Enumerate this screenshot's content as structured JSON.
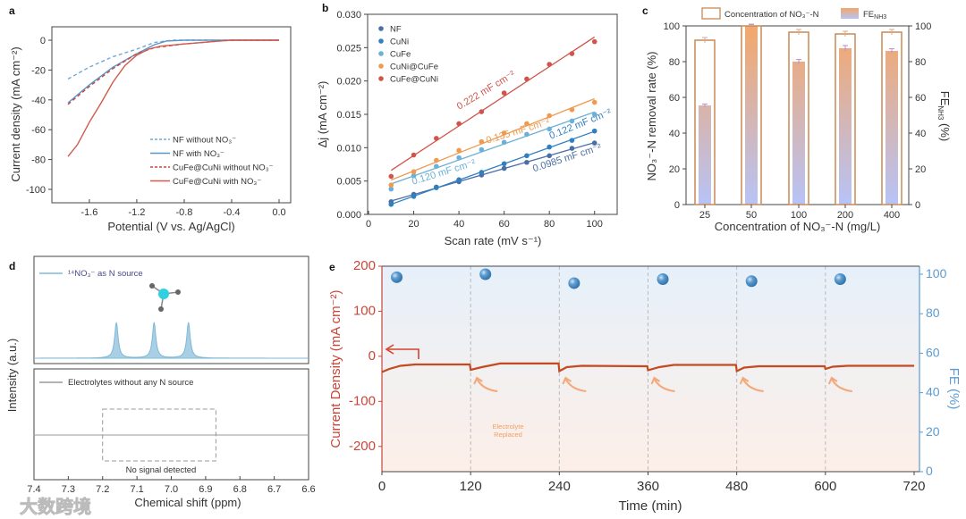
{
  "watermark": "大数跨境",
  "chart_data": [
    {
      "panel": "a",
      "type": "line",
      "xlabel": "Potential (V vs. Ag/AgCl)",
      "ylabel": "Current density (mA cm⁻²)",
      "xlim": [
        -1.916,
        0.098
      ],
      "ylim": [
        -109,
        9
      ],
      "xticks": [
        -1.6,
        -1.2,
        -0.8,
        -0.4,
        0.0
      ],
      "xtick_labels": [
        "-1.6",
        "-1.2",
        "-0.8",
        "-0.4",
        "0.0"
      ],
      "yticks": [
        0,
        -20,
        -40,
        -60,
        -80,
        -100
      ],
      "ytick_labels": [
        "0",
        "-20",
        "-40",
        "-60",
        "-80",
        "-100"
      ],
      "legend_position": "bottom-right",
      "series": [
        {
          "name": "NF without NO₃⁻",
          "color": "#6fa8d6",
          "dashed": true,
          "points": [
            [
              -1.78,
              -26
            ],
            [
              -1.6,
              -18
            ],
            [
              -1.4,
              -11
            ],
            [
              -1.2,
              -6
            ],
            [
              -1.05,
              -1.5
            ],
            [
              -0.9,
              0
            ],
            [
              0,
              0
            ]
          ]
        },
        {
          "name": "NF with NO₃⁻",
          "color": "#5b95c8",
          "dashed": false,
          "points": [
            [
              -1.78,
              -42
            ],
            [
              -1.6,
              -30
            ],
            [
              -1.4,
              -18
            ],
            [
              -1.2,
              -9
            ],
            [
              -1.05,
              -3
            ],
            [
              -0.95,
              -0.5
            ],
            [
              -0.8,
              0
            ],
            [
              0,
              0
            ]
          ]
        },
        {
          "name": "CuFe@CuNi without NO₃⁻",
          "color": "#c8463a",
          "dashed": true,
          "points": [
            [
              -1.78,
              -43
            ],
            [
              -1.6,
              -31
            ],
            [
              -1.4,
              -19
            ],
            [
              -1.2,
              -9
            ],
            [
              -1.05,
              -5
            ],
            [
              -0.8,
              -2.5
            ],
            [
              -0.5,
              -0.5
            ],
            [
              -0.4,
              0
            ],
            [
              0,
              0
            ]
          ]
        },
        {
          "name": "CuFe@CuNi with NO₃⁻",
          "color": "#d05a4c",
          "dashed": false,
          "points": [
            [
              -1.78,
              -78
            ],
            [
              -1.7,
              -70
            ],
            [
              -1.6,
              -55
            ],
            [
              -1.5,
              -42
            ],
            [
              -1.4,
              -28
            ],
            [
              -1.3,
              -17
            ],
            [
              -1.2,
              -10
            ],
            [
              -1.1,
              -6
            ],
            [
              -1.0,
              -4
            ],
            [
              -0.8,
              -2.5
            ],
            [
              -0.5,
              -0.5
            ],
            [
              -0.4,
              0
            ],
            [
              0,
              0
            ]
          ]
        }
      ]
    },
    {
      "panel": "b",
      "type": "scatter",
      "xlabel": "Scan rate (mV s⁻¹)",
      "ylabel": "Δj (mA cm⁻²)",
      "xlim": [
        0,
        110
      ],
      "ylim": [
        0,
        0.03
      ],
      "xticks": [
        0,
        20,
        40,
        60,
        80,
        100
      ],
      "xtick_labels": [
        "0",
        "20",
        "40",
        "60",
        "80",
        "100"
      ],
      "yticks": [
        0,
        0.005,
        0.01,
        0.015,
        0.02,
        0.025,
        0.03
      ],
      "ytick_labels": [
        "0.000",
        "0.005",
        "0.010",
        "0.015",
        "0.020",
        "0.025",
        "0.030"
      ],
      "legend_position": "top-left",
      "x": [
        10,
        20,
        30,
        40,
        50,
        60,
        70,
        80,
        90,
        100
      ],
      "series": [
        {
          "name": "NF",
          "color": "#4a6fa5",
          "fit_label": "0.0985 mF cm⁻²",
          "values": [
            0.0019,
            0.003,
            0.0041,
            0.0049,
            0.0059,
            0.0069,
            0.0078,
            0.0088,
            0.0099,
            0.0107
          ]
        },
        {
          "name": "CuNi",
          "color": "#2f7fc1",
          "fit_label": "0.122 mF cm⁻²",
          "values": [
            0.0015,
            0.0027,
            0.004,
            0.0052,
            0.0063,
            0.0076,
            0.0088,
            0.0101,
            0.0111,
            0.0125
          ]
        },
        {
          "name": "CuFe",
          "color": "#6ab0d8",
          "fit_label": "0.120 mF cm⁻²",
          "values": [
            0.0038,
            0.0058,
            0.0072,
            0.0085,
            0.0097,
            0.0108,
            0.012,
            0.0128,
            0.014,
            0.015
          ]
        },
        {
          "name": "CuNi@CuFe",
          "color": "#f09a50",
          "fit_label": "0.135 mF cm⁻²",
          "values": [
            0.0044,
            0.0064,
            0.0081,
            0.0096,
            0.0109,
            0.0122,
            0.0136,
            0.0148,
            0.0157,
            0.0168
          ]
        },
        {
          "name": "CuFe@CuNi",
          "color": "#d0544a",
          "fit_label": "0.222 mF cm⁻²",
          "values": [
            0.0057,
            0.0089,
            0.0114,
            0.0136,
            0.0154,
            0.0182,
            0.0203,
            0.0225,
            0.0241,
            0.0259
          ]
        }
      ]
    },
    {
      "panel": "c",
      "type": "bar",
      "xlabel": "Concentration of NO₃⁻-N (mg/L)",
      "ylabel": "NO₃⁻-N removal rate (%)",
      "ylabel_right": "FE",
      "ylabel_right_sub": "NH3",
      "ylabel_right_unit": "(%)",
      "ylim": [
        0,
        100
      ],
      "yticks": [
        0,
        20,
        40,
        60,
        80,
        100
      ],
      "ytick_labels": [
        "0",
        "20",
        "40",
        "60",
        "80",
        "100"
      ],
      "categories": [
        "25",
        "50",
        "100",
        "200",
        "400"
      ],
      "legend_position": "top",
      "series": [
        {
          "name": "Concentration of NO₃⁻-N",
          "style": "hollow",
          "color": "#c98a55",
          "values": [
            92,
            100,
            96.5,
            95.5,
            96.5
          ],
          "errors": [
            1.5,
            1,
            1.5,
            1.5,
            1.5
          ]
        },
        {
          "name": "FE",
          "name_sub": "NH3",
          "style": "gradient",
          "color_top": "#f4a76a",
          "color_bottom": "#b7c3f7",
          "values": [
            55.5,
            100,
            80,
            87.5,
            86
          ],
          "errors": [
            0.8,
            0.8,
            1.2,
            1.5,
            1.2
          ]
        }
      ]
    },
    {
      "panel": "d",
      "type": "line",
      "xlabel": "Chemical shift (ppm)",
      "ylabel": "Intensity (a.u.)",
      "xlim": [
        7.4,
        6.6
      ],
      "xticks": [
        7.4,
        7.3,
        7.2,
        7.1,
        7.0,
        6.9,
        6.8,
        6.7,
        6.6
      ],
      "xtick_labels": [
        "7.4",
        "7.3",
        "7.2",
        "7.1",
        "7.0",
        "6.9",
        "6.8",
        "6.7",
        "6.6"
      ],
      "series": [
        {
          "name": "¹⁴NO₃⁻ as N source",
          "color": "#7fb8d8",
          "peaks_ppm": [
            7.16,
            7.05,
            6.95
          ]
        },
        {
          "name": "Electrolytes without any N source",
          "color": "#9a9a9a",
          "peaks_ppm": []
        }
      ],
      "annotation": "No signal detected",
      "annotation_box_ppm": [
        7.2,
        6.87
      ]
    },
    {
      "panel": "e",
      "type": "line",
      "xlabel": "Time (min)",
      "ylabel": "Current Density (mA cm⁻²)",
      "ylabel_right": "FE (%)",
      "xlim": [
        0,
        720
      ],
      "ylim": [
        -256,
        200
      ],
      "ylim_right": [
        0,
        104
      ],
      "xticks": [
        0,
        120,
        240,
        360,
        480,
        600,
        720
      ],
      "xtick_labels": [
        "0",
        "120",
        "240",
        "360",
        "480",
        "600",
        "720"
      ],
      "yticks": [
        200,
        100,
        0,
        -100,
        -200
      ],
      "ytick_labels": [
        "200",
        "100",
        "0",
        "-100",
        "-200"
      ],
      "yticks_right": [
        0,
        20,
        40,
        60,
        80,
        100
      ],
      "ytick_labels_right": [
        "0",
        "20",
        "40",
        "60",
        "80",
        "100"
      ],
      "color_left": "#c8463a",
      "color_right": "#5b9bd0",
      "annotation_lines": [
        "Electrolyte",
        "Replaced"
      ],
      "replacement_times": [
        120,
        240,
        360,
        480,
        600
      ],
      "current": [
        [
          0,
          -35
        ],
        [
          10,
          -28
        ],
        [
          25,
          -21
        ],
        [
          45,
          -18
        ],
        [
          119,
          -18
        ],
        [
          120,
          -30
        ],
        [
          135,
          -24
        ],
        [
          160,
          -16
        ],
        [
          239,
          -16
        ],
        [
          240,
          -33
        ],
        [
          250,
          -24
        ],
        [
          270,
          -21
        ],
        [
          359,
          -22
        ],
        [
          360,
          -31
        ],
        [
          375,
          -24
        ],
        [
          395,
          -19
        ],
        [
          479,
          -19
        ],
        [
          480,
          -33
        ],
        [
          490,
          -25
        ],
        [
          510,
          -22
        ],
        [
          599,
          -22
        ],
        [
          600,
          -28
        ],
        [
          610,
          -23
        ],
        [
          630,
          -21
        ],
        [
          720,
          -21
        ]
      ],
      "fe_points": [
        [
          20,
          98.5
        ],
        [
          140,
          100
        ],
        [
          260,
          95.5
        ],
        [
          380,
          97.5
        ],
        [
          500,
          96.5
        ],
        [
          620,
          97.5
        ]
      ]
    }
  ]
}
